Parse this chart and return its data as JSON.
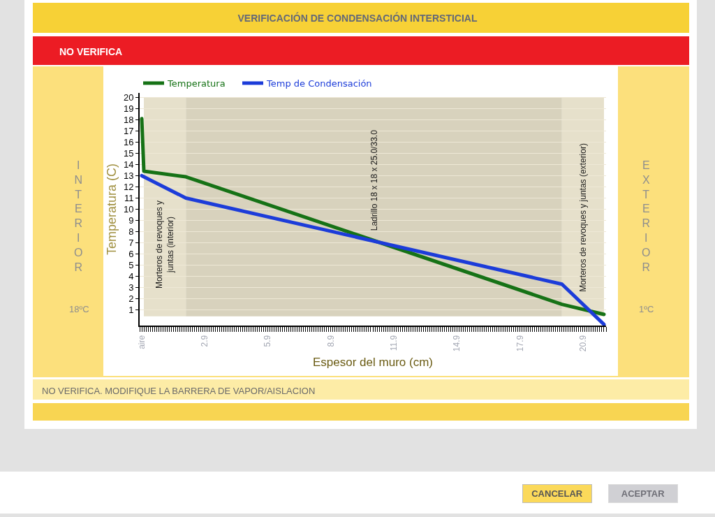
{
  "chart_data": {
    "type": "line",
    "title": "VERIFICACIÓN DE CONDENSACIÓN INTERSTICIAL",
    "subtitle": "NO VERIFICA",
    "xlabel": "Espesor del muro (cm)",
    "ylabel": "Temperatura (C)",
    "x": [
      -0.1,
      0.0,
      2.0,
      19.9,
      21.9
    ],
    "series": [
      {
        "name": "Temperatura",
        "color": "#167216",
        "values": [
          18.1,
          13.4,
          12.9,
          1.5,
          0.6
        ]
      },
      {
        "name": "Temp de Condensación",
        "color": "#1c3cd9",
        "values": [
          13.0,
          12.9,
          11.0,
          3.3,
          -0.3
        ]
      }
    ],
    "xlim": [
      -0.2,
      22.0
    ],
    "xticks": [
      {
        "value": -0.1,
        "label": "aire"
      },
      2.9,
      5.9,
      8.9,
      11.9,
      14.9,
      17.9,
      20.9
    ],
    "ylim": [
      -0.4,
      20.4
    ],
    "yticks": [
      1,
      2,
      3,
      4,
      5,
      6,
      7,
      8,
      9,
      10,
      11,
      12,
      13,
      14,
      15,
      16,
      17,
      18,
      19,
      20
    ],
    "bands": [
      {
        "axis": "x",
        "from": 0.0,
        "to": 2.0,
        "label": "Morteros de revoques y juntas (interior)",
        "color": "#e6e0cb"
      },
      {
        "axis": "x",
        "from": 2.0,
        "to": 19.9,
        "label": "Ladrillo 18 x 18 x 25.0/33.0",
        "color": "#d8d2bd"
      },
      {
        "axis": "x",
        "from": 19.9,
        "to": 21.9,
        "label": "Morteros de revoques y juntas (exterior)",
        "color": "#e6e0cb"
      }
    ],
    "annotations": [
      "INTERIOR",
      "18ºC",
      "EXTERIOR",
      "1ºC",
      "NO VERIFICA. MODIFIQUE LA BARRERA DE VAPOR/AISLACION",
      "CANCELAR",
      "ACEPTAR"
    ],
    "grid": "y",
    "legend": "top left",
    "line_style": "solid"
  }
}
